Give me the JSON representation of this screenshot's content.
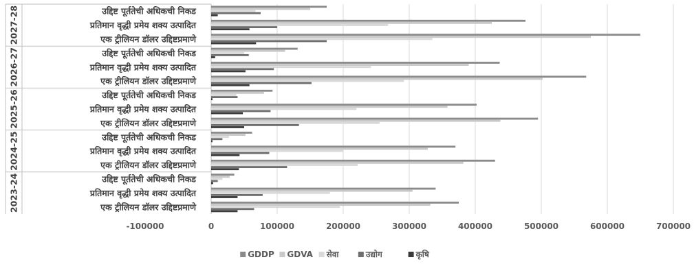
{
  "chart_data": {
    "type": "bar",
    "orientation": "horizontal",
    "title": "",
    "xlabel": "",
    "ylabel": "",
    "xlim": [
      -100000,
      700000
    ],
    "xticks": [
      -100000,
      0,
      100000,
      200000,
      300000,
      400000,
      500000,
      600000,
      700000
    ],
    "xtick_labels": [
      "-100000",
      "0",
      "100000",
      "200000",
      "300000",
      "400000",
      "500000",
      "600000",
      "700000"
    ],
    "grid": true,
    "legend_position": "bottom",
    "groups": [
      {
        "label": "2023-24",
        "categories": [
          {
            "label": "एक ट्रीलियन डॉलर उद्दिष्टप्रमाणे",
            "values": [
              40000,
              65000,
              195000,
              332000,
              375000
            ]
          },
          {
            "label": "प्रतिमान वृद्धी प्रमेय शक्य उत्पादित",
            "values": [
              40000,
              78000,
              180000,
              305000,
              340000
            ]
          },
          {
            "label": "उद्दिष्ट पूर्ततेची अधिकची निकड",
            "values": [
              3000,
              10000,
              17000,
              28000,
              35000
            ]
          }
        ]
      },
      {
        "label": "2024-25",
        "categories": [
          {
            "label": "एक ट्रीलियन डॉलर उद्दिष्टप्रमाणे",
            "values": [
              42000,
              115000,
              222000,
              382000,
              430000
            ]
          },
          {
            "label": "प्रतिमान वृद्धी प्रमेय शक्य उत्पादित",
            "values": [
              43000,
              88000,
              200000,
              328000,
              370000
            ]
          },
          {
            "label": "उद्दिष्ट पूर्ततेची अधिकची निकड",
            "values": [
              2000,
              17000,
              27000,
              52000,
              62000
            ]
          }
        ]
      },
      {
        "label": "2025-26",
        "categories": [
          {
            "label": "एक ट्रीलियन डॉलर उद्दिष्टप्रमाणे",
            "values": [
              50000,
              133000,
              255000,
              438000,
              495000
            ]
          },
          {
            "label": "प्रतिमान वृद्धी प्रमेय शक्य उत्पादित",
            "values": [
              48000,
              90000,
              220000,
              358000,
              402000
            ]
          },
          {
            "label": "उद्दिष्ट पूर्ततेची अधिकची निकड",
            "values": [
              2000,
              40000,
              38000,
              80000,
              93000
            ]
          }
        ]
      },
      {
        "label": "2026-27",
        "categories": [
          {
            "label": "एक ट्रीलियन डॉलर उद्दिष्टप्रमाणे",
            "values": [
              58000,
              152000,
              292000,
              502000,
              568000
            ]
          },
          {
            "label": "प्रतिमान वृद्धी प्रमेय शक्य उत्पादित",
            "values": [
              52000,
              95000,
              242000,
              390000,
              437000
            ]
          },
          {
            "label": "उद्दिष्ट पूर्ततेची अधिकची निकड",
            "values": [
              6000,
              57000,
              50000,
              112000,
              131000
            ]
          }
        ]
      },
      {
        "label": "2027-28",
        "categories": [
          {
            "label": "एक ट्रीलियन डॉलर उद्दिष्टप्रमाणे",
            "values": [
              68000,
              175000,
              335000,
              575000,
              650000
            ]
          },
          {
            "label": "प्रतिमान वृद्धी प्रमेय शक्य उत्पादित",
            "values": [
              58000,
              100000,
              268000,
              425000,
              476000
            ]
          },
          {
            "label": "उद्दिष्ट पूर्ततेची अधिकची निकड",
            "values": [
              10000,
              75000,
              67000,
              150000,
              175000
            ]
          }
        ]
      }
    ],
    "series": [
      {
        "name": "कृषि",
        "color": "#3a3a3a"
      },
      {
        "name": "उद्योग",
        "color": "#6e6e6e"
      },
      {
        "name": "सेवा",
        "color": "#d9d9d9"
      },
      {
        "name": "GDVA",
        "color": "#c8c8c8"
      },
      {
        "name": "GDDP",
        "color": "#8a8a8a"
      }
    ],
    "legend_order": [
      "GDDP",
      "GDVA",
      "सेवा",
      "उद्योग",
      "कृषि"
    ]
  }
}
